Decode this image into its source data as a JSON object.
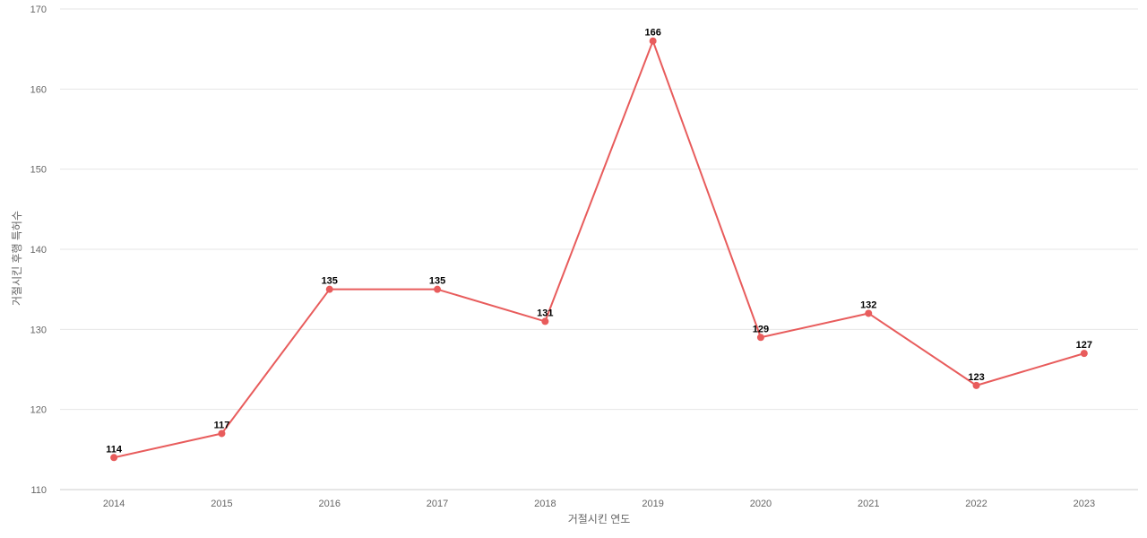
{
  "chart_data": {
    "type": "line",
    "title": "",
    "xlabel": "거절시킨 연도",
    "ylabel": "거절시킨 후행 특허수",
    "categories": [
      "2014",
      "2015",
      "2016",
      "2017",
      "2018",
      "2019",
      "2020",
      "2021",
      "2022",
      "2023"
    ],
    "series": [
      {
        "values": [
          114,
          117,
          135,
          135,
          131,
          166,
          129,
          132,
          123,
          127
        ],
        "color": "#e85c5c"
      }
    ],
    "ylim": [
      110,
      170
    ],
    "yticks": [
      110,
      120,
      130,
      140,
      150,
      160,
      170
    ],
    "grid": true,
    "data_labels": true,
    "legend": "none"
  }
}
